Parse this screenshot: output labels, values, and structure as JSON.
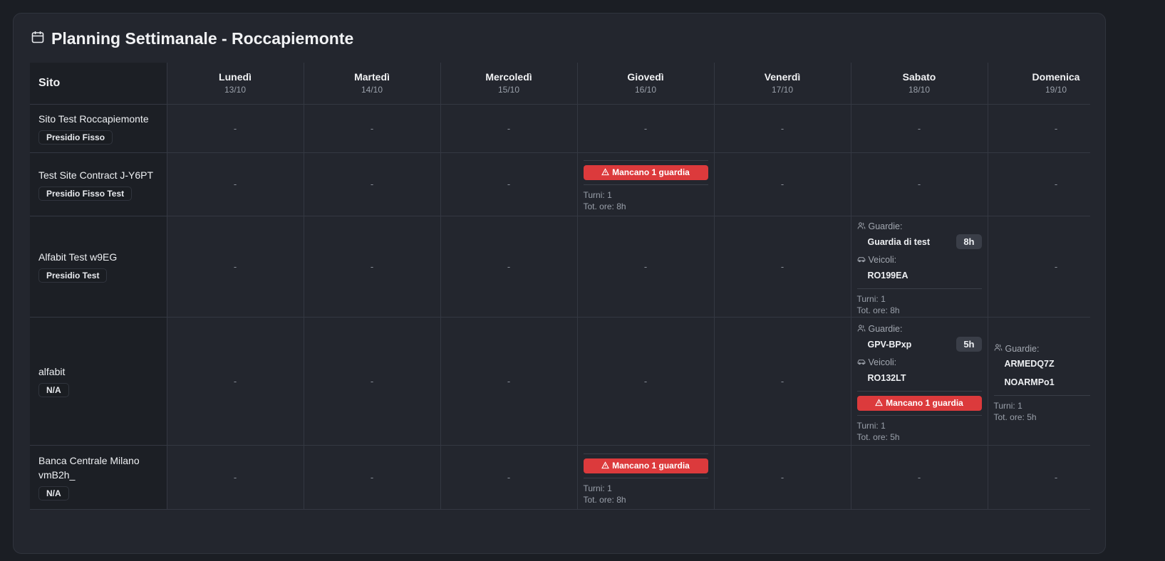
{
  "title": "Planning Settimanale - Roccapiemonte",
  "header": {
    "site_label": "Sito",
    "days": [
      {
        "name": "Lunedì",
        "date": "13/10"
      },
      {
        "name": "Martedì",
        "date": "14/10"
      },
      {
        "name": "Mercoledì",
        "date": "15/10"
      },
      {
        "name": "Giovedì",
        "date": "16/10"
      },
      {
        "name": "Venerdì",
        "date": "17/10"
      },
      {
        "name": "Sabato",
        "date": "18/10"
      },
      {
        "name": "Domenica",
        "date": "19/10"
      }
    ]
  },
  "labels": {
    "empty": "-",
    "guards": "Guardie:",
    "vehicles": "Veicoli:"
  },
  "colors": {
    "alert": "#dc3a3c",
    "background": "#23262e"
  },
  "rows": [
    {
      "name": "Sito Test Roccapiemonte",
      "badge": "Presidio Fisso",
      "height": 68,
      "days": [
        null,
        null,
        null,
        null,
        null,
        null,
        null
      ]
    },
    {
      "name": "Test Site Contract J-Y6PT",
      "badge": "Presidio Fisso Test",
      "height": 89,
      "days": [
        null,
        null,
        null,
        {
          "alert": "Mancano 1 guardia",
          "turni": "Turni: 1",
          "ore": "Tot. ore: 8h"
        },
        null,
        null,
        null
      ]
    },
    {
      "name": "Alfabit Test w9EG",
      "badge": "Presidio Test",
      "height": 142,
      "days": [
        null,
        null,
        null,
        null,
        null,
        {
          "guards": [
            {
              "name": "Guardia di test",
              "hours": "8h"
            }
          ],
          "vehicles": [
            "RO199EA"
          ],
          "turni": "Turni: 1",
          "ore": "Tot. ore: 8h"
        },
        null
      ]
    },
    {
      "name": "alfabit",
      "badge": "N/A",
      "height": 180,
      "days": [
        null,
        null,
        null,
        null,
        null,
        {
          "guards": [
            {
              "name": "GPV-BPxp",
              "hours": "5h"
            }
          ],
          "vehicles": [
            "RO132LT"
          ],
          "alert": "Mancano 1 guardia",
          "turni": "Turni: 1",
          "ore": "Tot. ore: 5h"
        },
        {
          "guards": [
            {
              "name": "ARMEDQ7Z"
            },
            {
              "name": "NOARMPo1"
            }
          ],
          "turni": "Turni: 1",
          "ore": "Tot. ore: 5h"
        }
      ]
    },
    {
      "name": "Banca Centrale Milano vmB2h_",
      "badge": "N/A",
      "height": 90,
      "days": [
        null,
        null,
        null,
        {
          "alert": "Mancano 1 guardia",
          "turni": "Turni: 1",
          "ore": "Tot. ore: 8h"
        },
        null,
        null,
        null
      ]
    }
  ]
}
